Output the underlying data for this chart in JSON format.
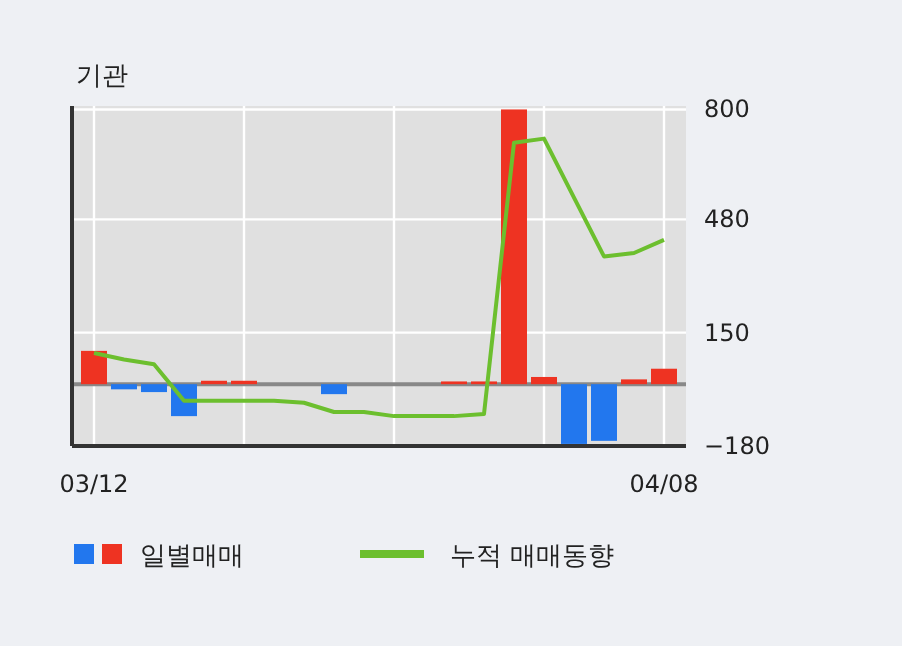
{
  "chart_data": {
    "type": "bar",
    "title": "기관",
    "categories": [
      "03/12",
      null,
      null,
      null,
      null,
      null,
      null,
      null,
      null,
      null,
      null,
      null,
      null,
      null,
      null,
      null,
      null,
      null,
      null,
      "04/08"
    ],
    "series": [
      {
        "name": "일별매매",
        "colors": [
          "#ee3322",
          "#2277ee",
          "#2277ee",
          "#2277ee",
          "#ee3322",
          "#ee3322",
          "#ee3322",
          "#ee3322",
          "#2277ee",
          "#ee3322",
          "#ee3322",
          "#ee3322",
          "#ee3322",
          "#ee3322",
          "#ee3322",
          "#ee3322",
          "#2277ee",
          "#2277ee",
          "#ee3322",
          "#ee3322"
        ],
        "values": [
          97,
          -15,
          -23,
          -93,
          10,
          10,
          0,
          0,
          -29,
          0,
          0,
          0,
          8,
          8,
          800,
          21,
          -174,
          -165,
          14,
          45
        ]
      },
      {
        "name": "누적 매매동향",
        "type": "line",
        "color": "#6cbf2e",
        "values": [
          91,
          72,
          58,
          -48,
          -48,
          -48,
          -48,
          -54,
          -81,
          -81,
          -93,
          -93,
          -93,
          -87,
          703,
          715,
          543,
          372,
          382,
          420
        ]
      }
    ],
    "ylim": [
      -180,
      810
    ],
    "yticks": [
      800,
      480,
      150,
      -180
    ],
    "ref_lines": [
      {
        "axis": "y",
        "value": 0,
        "color": "#888888"
      }
    ],
    "grid": true,
    "legend": "bottom"
  }
}
